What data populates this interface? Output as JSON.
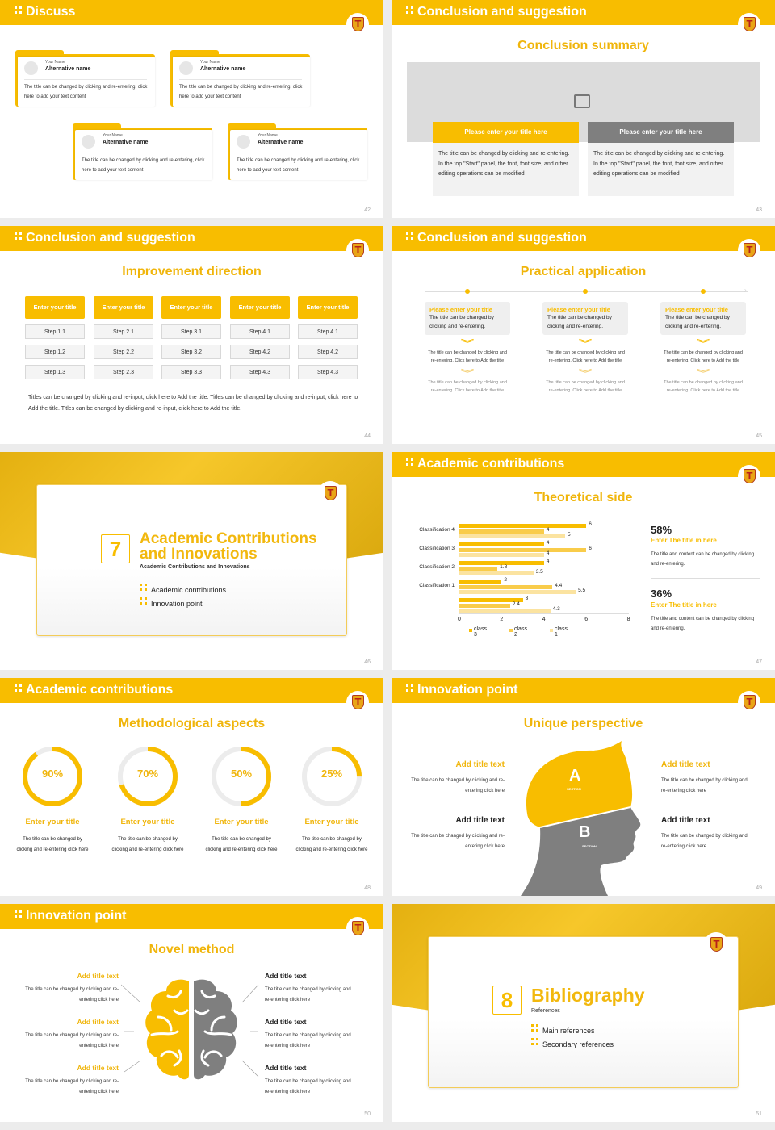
{
  "colors": {
    "accent": "#f8bd00",
    "gray": "#7f7f7f",
    "light_gray": "#ececec"
  },
  "slides": {
    "s42": {
      "header": "Discuss",
      "page": "42",
      "cards": [
        {
          "name_label": "Your Name",
          "alt_name": "Alternative name",
          "text": "The title can be changed by clicking and re-entering, click here to add your text content"
        },
        {
          "name_label": "Your Name",
          "alt_name": "Alternative name",
          "text": "The title can be changed by clicking and re-entering, click here to add your text content"
        },
        {
          "name_label": "Your Name",
          "alt_name": "Alternative name",
          "text": "The title can be changed by clicking and re-entering, click here to add your text content"
        },
        {
          "name_label": "Your Name",
          "alt_name": "Alternative name",
          "text": "The title can be changed by clicking and re-entering, click here to add your text content"
        }
      ]
    },
    "s43": {
      "header": "Conclusion and suggestion",
      "subtitle": "Conclusion summary",
      "page": "43",
      "panels": [
        {
          "title": "Please enter your title here",
          "text": "The title can be changed by clicking and re-entering. In the top \"Start\" panel, the font, font size, and other editing operations can be modified"
        },
        {
          "title": "Please enter your title here",
          "text": "The title can be changed by clicking and re-entering. In the top \"Start\" panel, the font, font size, and other editing operations can be modified"
        }
      ]
    },
    "s44": {
      "header": "Conclusion and suggestion",
      "subtitle": "Improvement direction",
      "page": "44",
      "columns": [
        {
          "title": "Enter your title",
          "steps": [
            "Step 1.1",
            "Step 1.2",
            "Step 1.3"
          ]
        },
        {
          "title": "Enter your title",
          "steps": [
            "Step 2.1",
            "Step 2.2",
            "Step 2.3"
          ]
        },
        {
          "title": "Enter your title",
          "steps": [
            "Step 3.1",
            "Step 3.2",
            "Step 3.3"
          ]
        },
        {
          "title": "Enter your title",
          "steps": [
            "Step 4.1",
            "Step 4.2",
            "Step 4.3"
          ]
        },
        {
          "title": "Enter your title",
          "steps": [
            "Step 4.1",
            "Step 4.2",
            "Step 4.3"
          ]
        }
      ],
      "paragraph": "Titles can be changed by clicking and re-input, click here to Add the title. Titles can be changed by clicking and re-input, click here to Add the title. Titles can be changed by clicking and re-input, click here to Add the title."
    },
    "s45": {
      "header": "Conclusion and suggestion",
      "subtitle": "Practical application",
      "page": "45",
      "items": [
        {
          "title": "Please enter your title",
          "text": "The title can be changed by clicking and re-entering.",
          "note1": "The title can be changed by clicking and re-entering. Click here to Add the title",
          "note2": "The title can be changed by clicking and re-entering. Click here to Add the title"
        },
        {
          "title": "Please enter your title",
          "text": "The title can be changed by clicking and re-entering.",
          "note1": "The title can be changed by clicking and re-entering. Click here to Add the title",
          "note2": "The title can be changed by clicking and re-entering. Click here to Add the title"
        },
        {
          "title": "Please enter your title",
          "text": "The title can be changed by clicking and re-entering.",
          "note1": "The title can be changed by clicking and re-entering. Click here to Add the title",
          "note2": "The title can be changed by clicking and re-entering. Click here to Add the title"
        }
      ]
    },
    "s46": {
      "number": "7",
      "title_line1": "Academic Contributions",
      "title_line2": "and Innovations",
      "subtitle": "Academic Contributions and Innovations",
      "items": [
        "Academic contributions",
        "Innovation point"
      ],
      "page": "46"
    },
    "s47": {
      "header": "Academic contributions",
      "subtitle": "Theoretical side",
      "page": "47",
      "stats": [
        {
          "pct": "58%",
          "title": "Enter The title in here",
          "text": "The title and content can be changed by clicking and re-entering."
        },
        {
          "pct": "36%",
          "title": "Enter The title in here",
          "text": "The title and content can be changed by clicking and re-entering."
        }
      ]
    },
    "s48": {
      "header": "Academic contributions",
      "subtitle": "Methodological aspects",
      "page": "48",
      "rings": [
        {
          "pct": 90,
          "label": "90%",
          "title": "Enter your title",
          "text": "The title can be changed by clicking and re-entering click here"
        },
        {
          "pct": 70,
          "label": "70%",
          "title": "Enter your title",
          "text": "The title can be changed by clicking and re-entering click here"
        },
        {
          "pct": 50,
          "label": "50%",
          "title": "Enter your title",
          "text": "The title can be changed by clicking and re-entering click here"
        },
        {
          "pct": 25,
          "label": "25%",
          "title": "Enter your title",
          "text": "The title can be changed by clicking and re-entering click here"
        }
      ]
    },
    "s49": {
      "header": "Innovation point",
      "subtitle": "Unique perspective",
      "page": "49",
      "section_a": "A",
      "section_b": "B",
      "section_word": "SECTION",
      "blocks": [
        {
          "title": "Add title text",
          "text": "The title can be changed by clicking and re-entering click here"
        },
        {
          "title": "Add title text",
          "text": "The title can be changed by clicking and re-entering click here"
        },
        {
          "title": "Add title text",
          "text": "The title can be changed by clicking and re-entering click here"
        },
        {
          "title": "Add title text",
          "text": "The title can be changed by clicking and re-entering click here"
        }
      ]
    },
    "s50": {
      "header": "Innovation point",
      "subtitle": "Novel method",
      "page": "50",
      "blocks": [
        {
          "title": "Add title text",
          "text": "The title can be changed by clicking and re-entering click here"
        },
        {
          "title": "Add title text",
          "text": "The title can be changed by clicking and re-entering click here"
        },
        {
          "title": "Add title text",
          "text": "The title can be changed by clicking and re-entering click here"
        },
        {
          "title": "Add title text",
          "text": "The title can be changed by clicking and re-entering click here"
        },
        {
          "title": "Add title text",
          "text": "The title can be changed by clicking and re-entering click here"
        },
        {
          "title": "Add title text",
          "text": "The title can be changed by clicking and re-entering click here"
        }
      ]
    },
    "s51": {
      "number": "8",
      "title": "Bibliography",
      "subtitle": "References",
      "items": [
        "Main references",
        "Secondary references"
      ],
      "page": "51"
    }
  },
  "chart_data": {
    "type": "bar",
    "orientation": "horizontal",
    "title": "Theoretical side",
    "categories": [
      "(unlabeled)",
      "Classification 1",
      "Classification 2",
      "Classification 3",
      "Classification 4"
    ],
    "series": [
      {
        "name": "class 3",
        "color": "#f8bd00",
        "values": [
          3,
          2,
          4,
          4,
          6
        ]
      },
      {
        "name": "class 2",
        "color": "#f9cc4a",
        "values": [
          2.4,
          4.4,
          1.8,
          6,
          4
        ]
      },
      {
        "name": "class 1",
        "color": "#fbe3a0",
        "values": [
          4.3,
          5.5,
          3.5,
          4,
          5
        ]
      }
    ],
    "xlim": [
      0,
      8
    ],
    "xticks": [
      0,
      2,
      4,
      6,
      8
    ],
    "legend_position": "bottom",
    "grid": false
  }
}
